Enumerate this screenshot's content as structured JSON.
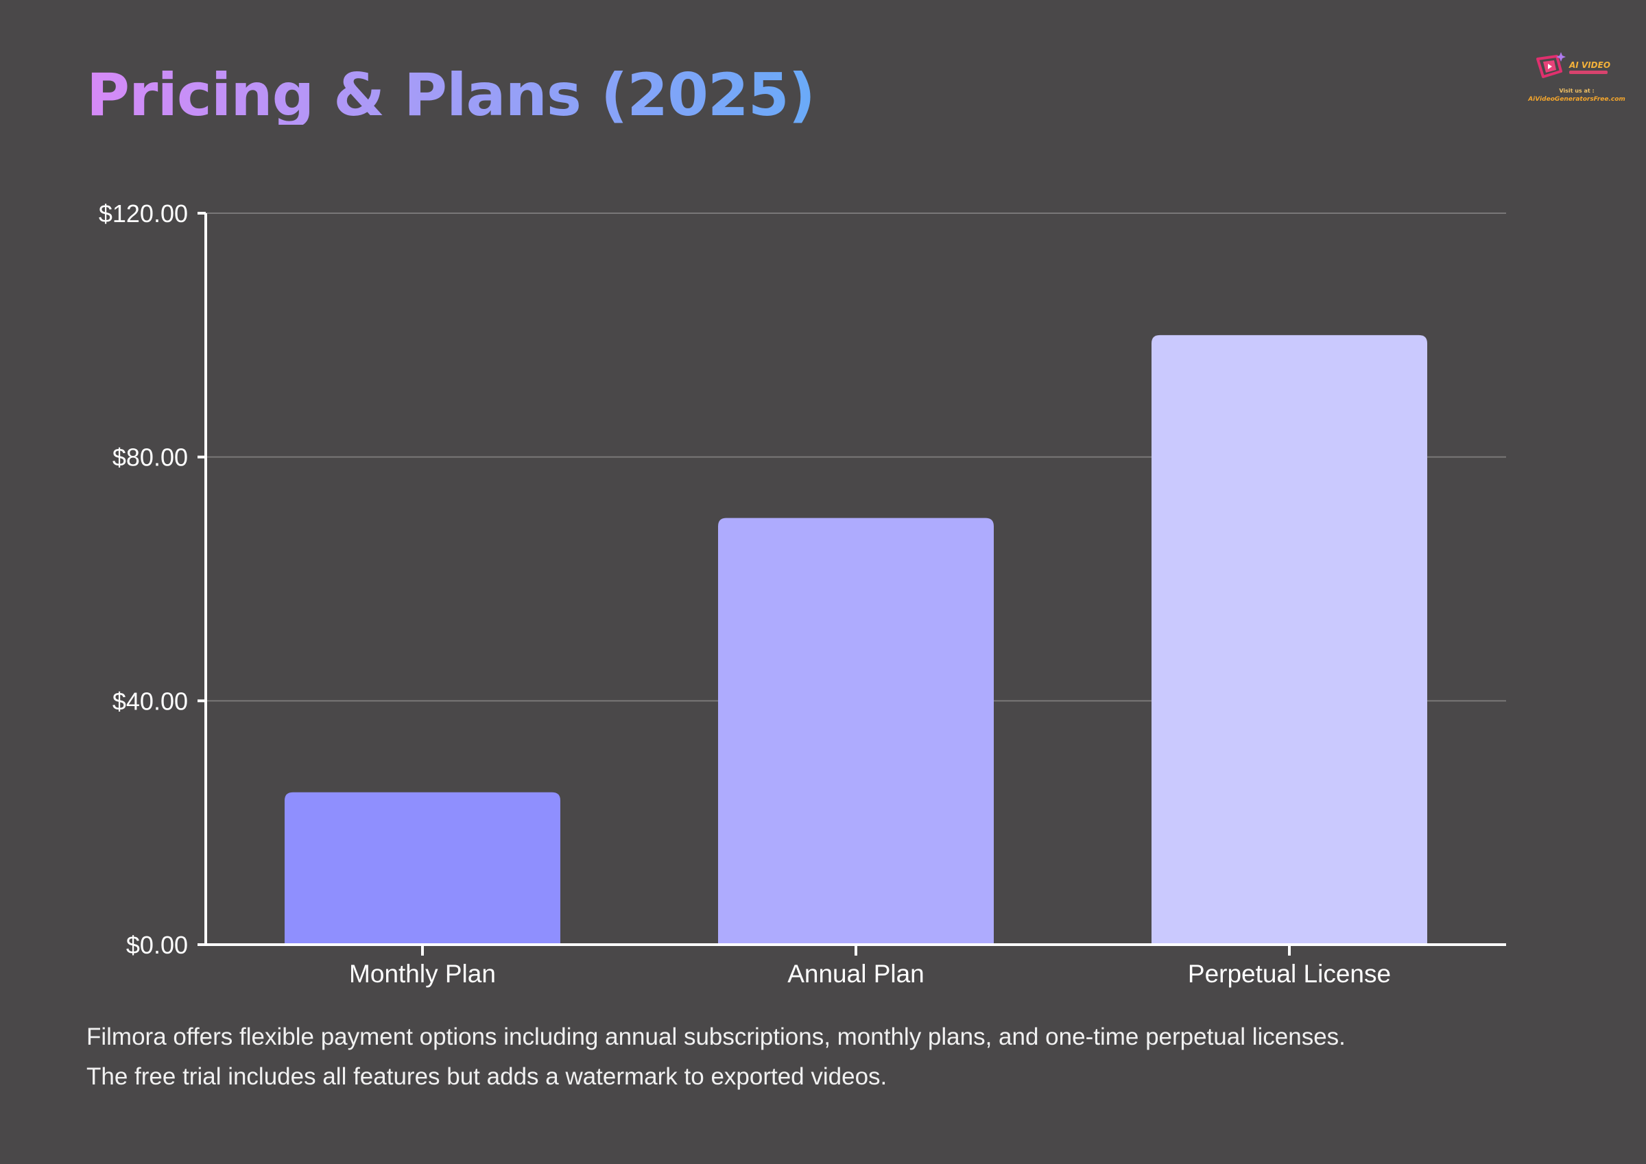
{
  "page": {
    "title": "Pricing & Plans (2025)",
    "background_color": "#4a4849",
    "title_gradient": [
      "#d68af7",
      "#a59cf7",
      "#6aaaf8"
    ]
  },
  "logo": {
    "name": "AI VIDEO",
    "visit_text": "Visit us at :",
    "url": "AiVideoGeneratorsFree.com"
  },
  "chart_data": {
    "type": "bar",
    "title": "",
    "xlabel": "",
    "ylabel": "",
    "categories": [
      "Monthly Plan",
      "Annual Plan",
      "Perpetual License"
    ],
    "values": [
      24.99,
      69.99,
      99.99
    ],
    "bar_colors": [
      "#8f8ffe",
      "#aeabfe",
      "#cac9fe"
    ],
    "ylim": [
      0,
      120
    ],
    "yticks": [
      0,
      40,
      80,
      120
    ],
    "ytick_labels": [
      "$0.00",
      "$40.00",
      "$80.00",
      "$120.00"
    ],
    "grid": true,
    "legend": "none"
  },
  "description": {
    "line1": "Filmora offers flexible payment options including annual subscriptions, monthly plans, and one-time perpetual licenses.",
    "line2": "The free trial includes all features but adds a watermark to exported videos."
  }
}
